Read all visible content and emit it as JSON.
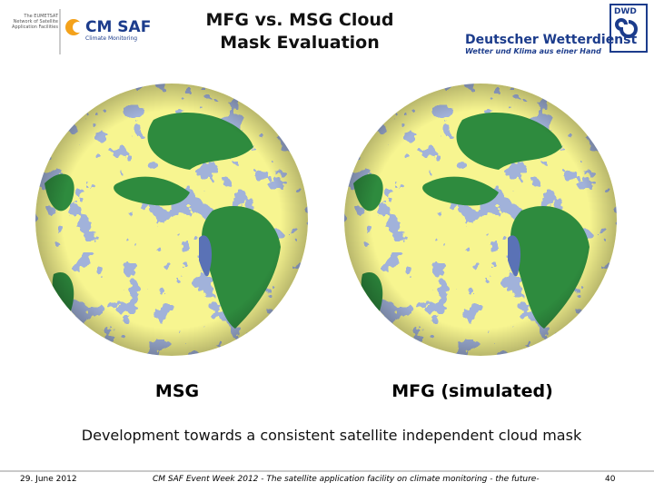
{
  "header": {
    "left_logo": {
      "network_text": "The EUMETSAT Network of Satellite Application Facilities",
      "name": "CM SAF",
      "tagline": "Climate Monitoring"
    },
    "title_lines": [
      "MFG vs. MSG Cloud",
      "Mask Evaluation"
    ],
    "right_logo": {
      "abbr": "DWD",
      "name": "Deutscher Wetterdienst",
      "tagline": "Wetter und Klima aus einer Hand"
    }
  },
  "images": [
    {
      "caption": "MSG"
    },
    {
      "caption": "MFG (simulated)"
    }
  ],
  "subtitle": "Development towards a consistent satellite independent cloud mask",
  "footer": {
    "date": "29. June 2012",
    "event": "CM SAF Event Week 2012 - The satellite application facility on climate monitoring - the future-",
    "page": "40"
  }
}
